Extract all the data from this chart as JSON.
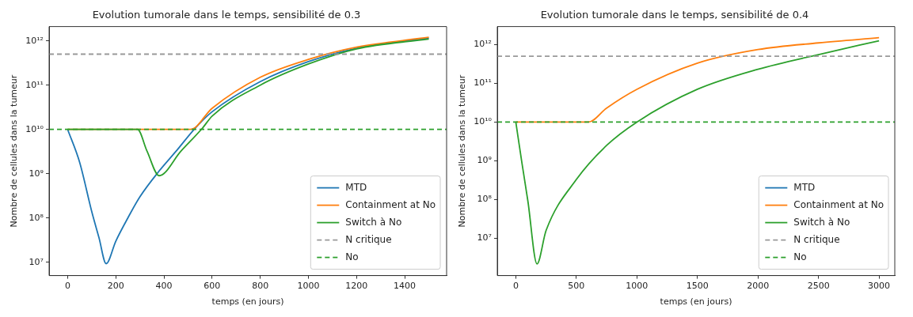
{
  "chart_data": [
    {
      "type": "line",
      "title": "Evolution tumorale dans le temps, sensibilité de 0.3",
      "xlabel": "temps (en jours)",
      "ylabel": "Nombre de cellules dans la tumeur",
      "xlim": [
        -77,
        1574
      ],
      "xticks": [
        0,
        200,
        400,
        600,
        800,
        1000,
        1200,
        1400
      ],
      "ylim": [
        5000000.0,
        2100000000000.0
      ],
      "yticks": [
        {
          "value": 10000000.0,
          "label": "10⁷"
        },
        {
          "value": 100000000.0,
          "label": "10⁸"
        },
        {
          "value": 1000000000.0,
          "label": "10⁹"
        },
        {
          "value": 10000000000.0,
          "label": "10¹⁰"
        },
        {
          "value": 100000000000.0,
          "label": "10¹¹"
        },
        {
          "value": 1000000000000.0,
          "label": "10¹²"
        }
      ],
      "log": "y",
      "legend": "bottom right",
      "line_style": "solid",
      "marker": "none",
      "series": [
        {
          "name": "MTD",
          "color": "#1f77b4",
          "x": [
            0,
            50,
            100,
            130,
            160,
            200,
            250,
            300,
            380,
            450,
            530,
            600,
            800,
            1000,
            1200,
            1500
          ],
          "values": [
            10000000000.0,
            1800000000.0,
            140000000.0,
            36000000.0,
            9300000.0,
            30000000.0,
            100000000.0,
            300000000.0,
            1150000000.0,
            3200000000.0,
            10700000000.0,
            25000000000.0,
            120000000000.0,
            340000000000.0,
            680000000000.0,
            1150000000000.0
          ]
        },
        {
          "name": "Containment at No",
          "color": "#ff7f0e",
          "x": [
            0,
            510,
            600,
            800,
            1000,
            1200,
            1500
          ],
          "values": [
            10000000000.0,
            10000000000.0,
            30000000000.0,
            150000000000.0,
            380000000000.0,
            720000000000.0,
            1200000000000.0
          ]
        },
        {
          "name": "Switch à No",
          "color": "#2ca02c",
          "x": [
            0,
            290,
            330,
            380,
            470,
            560,
            600,
            800,
            1000,
            1200,
            1500
          ],
          "values": [
            10000000000.0,
            10000000000.0,
            3200000000.0,
            900000000.0,
            3200000000.0,
            10700000000.0,
            20000000000.0,
            100000000000.0,
            300000000000.0,
            660000000000.0,
            1100000000000.0
          ]
        }
      ],
      "ref_lines": [
        {
          "axis": "y",
          "value": 500000000000.0,
          "label": "N critique",
          "color": "#999999",
          "line_style": "dashed"
        },
        {
          "axis": "y",
          "value": 10000000000.0,
          "label": "No",
          "color": "#2ca02c",
          "line_style": "dashed"
        }
      ]
    },
    {
      "type": "line",
      "title": "Evolution tumorale dans le temps, sensibilité de 0.4",
      "xlabel": "temps (en jours)",
      "ylabel": "Nombre de cellules dans la tumeur",
      "xlim": [
        -153,
        3130
      ],
      "xticks": [
        0,
        500,
        1000,
        1500,
        2000,
        2500,
        3000
      ],
      "ylim": [
        1100000.0,
        2900000000000.0
      ],
      "yticks": [
        {
          "value": 10000000.0,
          "label": "10⁷"
        },
        {
          "value": 100000000.0,
          "label": "10⁸"
        },
        {
          "value": 1000000000.0,
          "label": "10⁹"
        },
        {
          "value": 10000000000.0,
          "label": "10¹⁰"
        },
        {
          "value": 100000000000.0,
          "label": "10¹¹"
        },
        {
          "value": 1000000000000.0,
          "label": "10¹²"
        }
      ],
      "log": "y",
      "legend": "bottom right",
      "line_style": "solid",
      "marker": "none",
      "series": [
        {
          "name": "MTD",
          "color": "#1f77b4"
        },
        {
          "name": "Containment at No",
          "color": "#ff7f0e",
          "x": [
            0,
            600,
            750,
            1000,
            1500,
            2000,
            2500,
            3000
          ],
          "values": [
            10000000000.0,
            10000000000.0,
            23000000000.0,
            70000000000.0,
            330000000000.0,
            740000000000.0,
            1100000000000.0,
            1500000000000.0
          ]
        },
        {
          "name": "Switch à No",
          "color": "#2ca02c",
          "x": [
            0,
            50,
            100,
            175,
            250,
            500,
            750,
            1000,
            1500,
            2000,
            2500,
            3000
          ],
          "values": [
            10000000000.0,
            900000000.0,
            90000000.0,
            2200000.0,
            16000000.0,
            330000000.0,
            2500000000.0,
            10000000000.0,
            70000000000.0,
            230000000000.0,
            550000000000.0,
            1250000000000.0
          ]
        }
      ],
      "ref_lines": [
        {
          "axis": "y",
          "value": 500000000000.0,
          "label": "N critique",
          "color": "#999999",
          "line_style": "dashed"
        },
        {
          "axis": "y",
          "value": 10000000000.0,
          "label": "No",
          "color": "#2ca02c",
          "line_style": "dashed"
        }
      ]
    }
  ]
}
